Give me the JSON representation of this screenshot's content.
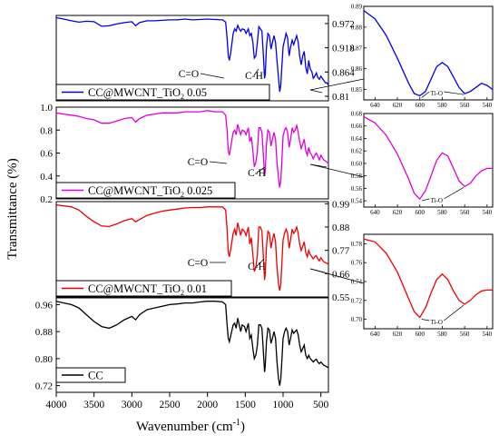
{
  "ylabel": "Transmittance (%)",
  "xlabel_main": "Wavenumber (cm",
  "xlabel_sup": "-1",
  "xlabel_close": ")",
  "chart_data": {
    "type": "line",
    "x_range": [
      4000,
      400
    ],
    "x_ticks": [
      4000,
      3500,
      3000,
      2500,
      2000,
      1500,
      1000,
      500
    ],
    "panels": [
      {
        "id": "p1",
        "legend_main": "CC@MWCNT_TiO",
        "legend_sub": "2",
        "legend_tail": " 0.05",
        "color": "#0000ee",
        "ylim": [
          0.8,
          0.99
        ],
        "right_ticks": [
          0.972,
          0.918,
          0.864,
          0.81
        ],
        "left_ticks": [],
        "annotations": [
          "C=O",
          "C-H"
        ],
        "x": [
          4000,
          3900,
          3800,
          3700,
          3600,
          3500,
          3400,
          3300,
          3200,
          3100,
          3000,
          2950,
          2900,
          2800,
          2700,
          2600,
          2500,
          2400,
          2300,
          2200,
          2100,
          2000,
          1900,
          1800,
          1760,
          1740,
          1725,
          1710,
          1690,
          1660,
          1640,
          1620,
          1600,
          1580,
          1560,
          1540,
          1510,
          1490,
          1460,
          1440,
          1420,
          1400,
          1380,
          1360,
          1340,
          1320,
          1300,
          1280,
          1260,
          1245,
          1235,
          1220,
          1200,
          1180,
          1160,
          1140,
          1120,
          1100,
          1080,
          1060,
          1045,
          1030,
          1015,
          1000,
          980,
          960,
          940,
          920,
          900,
          880,
          860,
          840,
          820,
          800,
          780,
          760,
          740,
          720,
          700,
          680,
          660,
          640,
          620,
          600,
          580,
          560,
          540,
          520,
          500,
          480,
          460,
          440,
          420,
          400
        ],
        "y": [
          0.985,
          0.982,
          0.978,
          0.975,
          0.977,
          0.976,
          0.966,
          0.967,
          0.971,
          0.974,
          0.976,
          0.967,
          0.974,
          0.978,
          0.978,
          0.979,
          0.98,
          0.98,
          0.982,
          0.98,
          0.981,
          0.982,
          0.981,
          0.98,
          0.975,
          0.94,
          0.9,
          0.89,
          0.91,
          0.95,
          0.96,
          0.955,
          0.968,
          0.96,
          0.955,
          0.96,
          0.958,
          0.95,
          0.96,
          0.945,
          0.95,
          0.93,
          0.895,
          0.9,
          0.93,
          0.965,
          0.96,
          0.955,
          0.9,
          0.85,
          0.86,
          0.92,
          0.95,
          0.945,
          0.915,
          0.93,
          0.945,
          0.93,
          0.89,
          0.85,
          0.82,
          0.835,
          0.88,
          0.92,
          0.935,
          0.95,
          0.94,
          0.9,
          0.92,
          0.935,
          0.925,
          0.935,
          0.945,
          0.93,
          0.9,
          0.88,
          0.9,
          0.91,
          0.875,
          0.86,
          0.89,
          0.87,
          0.865,
          0.85,
          0.855,
          0.862,
          0.852,
          0.848,
          0.855,
          0.85,
          0.845,
          0.84,
          0.84,
          0.835
        ],
        "inset": {
          "ylim": [
            0.845,
            0.89
          ],
          "y_ticks": [
            0.85,
            0.86,
            0.87,
            0.88,
            0.89
          ],
          "x_ticks": [
            640,
            620,
            600,
            580,
            560,
            540
          ],
          "label": "Ti-O",
          "x": [
            650,
            640,
            630,
            620,
            610,
            605,
            600,
            595,
            590,
            585,
            580,
            575,
            570,
            565,
            560,
            555,
            550,
            545,
            540,
            535
          ],
          "y": [
            0.888,
            0.884,
            0.876,
            0.865,
            0.853,
            0.848,
            0.847,
            0.849,
            0.855,
            0.861,
            0.863,
            0.861,
            0.856,
            0.851,
            0.848,
            0.849,
            0.851,
            0.853,
            0.852,
            0.85
          ]
        }
      },
      {
        "id": "p2",
        "legend_main": "CC@MWCNT_TiO",
        "legend_sub": "2",
        "legend_tail": " 0.025",
        "color": "#dd00dd",
        "ylim": [
          0.2,
          1.0
        ],
        "right_ticks": [],
        "left_ticks": [
          1.0,
          0.8,
          0.6,
          0.4,
          0.2
        ],
        "annotations": [
          "C=O",
          "C-H"
        ],
        "x": [
          4000,
          3900,
          3800,
          3700,
          3600,
          3500,
          3400,
          3300,
          3200,
          3100,
          3000,
          2950,
          2900,
          2800,
          2700,
          2600,
          2500,
          2400,
          2300,
          2200,
          2100,
          2000,
          1900,
          1800,
          1760,
          1740,
          1725,
          1710,
          1690,
          1660,
          1640,
          1620,
          1600,
          1580,
          1560,
          1540,
          1510,
          1490,
          1460,
          1440,
          1420,
          1400,
          1380,
          1360,
          1340,
          1320,
          1300,
          1280,
          1260,
          1245,
          1235,
          1220,
          1200,
          1180,
          1160,
          1140,
          1120,
          1100,
          1080,
          1060,
          1045,
          1030,
          1015,
          1000,
          980,
          960,
          940,
          920,
          900,
          880,
          860,
          840,
          820,
          800,
          780,
          760,
          740,
          720,
          700,
          680,
          660,
          640,
          620,
          600,
          580,
          560,
          540,
          520,
          500,
          480,
          460,
          440,
          420,
          400
        ],
        "y": [
          0.95,
          0.94,
          0.93,
          0.92,
          0.9,
          0.89,
          0.86,
          0.86,
          0.88,
          0.9,
          0.91,
          0.87,
          0.9,
          0.93,
          0.94,
          0.95,
          0.95,
          0.95,
          0.96,
          0.96,
          0.96,
          0.97,
          0.96,
          0.96,
          0.93,
          0.8,
          0.62,
          0.58,
          0.66,
          0.78,
          0.8,
          0.76,
          0.85,
          0.8,
          0.76,
          0.8,
          0.79,
          0.76,
          0.82,
          0.7,
          0.74,
          0.62,
          0.48,
          0.52,
          0.62,
          0.82,
          0.82,
          0.78,
          0.58,
          0.4,
          0.45,
          0.68,
          0.8,
          0.78,
          0.66,
          0.72,
          0.78,
          0.72,
          0.52,
          0.38,
          0.3,
          0.36,
          0.55,
          0.75,
          0.8,
          0.82,
          0.78,
          0.65,
          0.72,
          0.82,
          0.78,
          0.8,
          0.84,
          0.78,
          0.7,
          0.64,
          0.68,
          0.72,
          0.62,
          0.58,
          0.65,
          0.6,
          0.58,
          0.55,
          0.58,
          0.6,
          0.57,
          0.54,
          0.58,
          0.56,
          0.54,
          0.53,
          0.52,
          0.51
        ],
        "inset": {
          "ylim": [
            0.53,
            0.68
          ],
          "y_ticks": [
            0.54,
            0.56,
            0.58,
            0.6,
            0.62,
            0.64,
            0.66,
            0.68
          ],
          "x_ticks": [
            640,
            620,
            600,
            580,
            560,
            540
          ],
          "label": "Ti-O",
          "x": [
            650,
            640,
            630,
            620,
            610,
            605,
            600,
            595,
            590,
            585,
            580,
            575,
            570,
            565,
            560,
            555,
            550,
            545,
            540,
            535
          ],
          "y": [
            0.675,
            0.665,
            0.645,
            0.615,
            0.575,
            0.552,
            0.543,
            0.556,
            0.58,
            0.605,
            0.617,
            0.612,
            0.592,
            0.572,
            0.563,
            0.568,
            0.58,
            0.588,
            0.592,
            0.592
          ]
        }
      },
      {
        "id": "p3",
        "legend_main": "CC@MWCNT_TiO",
        "legend_sub": "2",
        "legend_tail": " 0.01",
        "color": "#ee0000",
        "ylim": [
          0.55,
          1.0
        ],
        "right_ticks": [
          0.99,
          0.88,
          0.77,
          0.66,
          0.55
        ],
        "left_ticks": [],
        "annotations": [
          "C=O",
          "C-H"
        ],
        "x": [
          4000,
          3900,
          3800,
          3700,
          3600,
          3500,
          3400,
          3300,
          3200,
          3100,
          3000,
          2950,
          2900,
          2800,
          2700,
          2600,
          2500,
          2400,
          2300,
          2200,
          2100,
          2000,
          1900,
          1800,
          1760,
          1740,
          1725,
          1710,
          1690,
          1660,
          1640,
          1620,
          1600,
          1580,
          1560,
          1540,
          1510,
          1490,
          1460,
          1440,
          1420,
          1400,
          1380,
          1360,
          1340,
          1320,
          1300,
          1280,
          1260,
          1245,
          1235,
          1220,
          1200,
          1180,
          1160,
          1140,
          1120,
          1100,
          1080,
          1060,
          1045,
          1030,
          1015,
          1000,
          980,
          960,
          940,
          920,
          900,
          880,
          860,
          840,
          820,
          800,
          780,
          760,
          740,
          720,
          700,
          680,
          660,
          640,
          620,
          600,
          580,
          560,
          540,
          520,
          500,
          480,
          460,
          440,
          420,
          400
        ],
        "y": [
          0.985,
          0.98,
          0.975,
          0.96,
          0.93,
          0.905,
          0.885,
          0.882,
          0.895,
          0.91,
          0.92,
          0.905,
          0.915,
          0.935,
          0.945,
          0.955,
          0.96,
          0.965,
          0.97,
          0.972,
          0.972,
          0.975,
          0.975,
          0.975,
          0.96,
          0.87,
          0.76,
          0.74,
          0.78,
          0.85,
          0.87,
          0.84,
          0.9,
          0.87,
          0.84,
          0.87,
          0.86,
          0.84,
          0.88,
          0.8,
          0.83,
          0.75,
          0.67,
          0.69,
          0.75,
          0.88,
          0.88,
          0.86,
          0.74,
          0.63,
          0.66,
          0.79,
          0.86,
          0.85,
          0.78,
          0.82,
          0.85,
          0.81,
          0.69,
          0.61,
          0.58,
          0.61,
          0.72,
          0.82,
          0.85,
          0.87,
          0.85,
          0.78,
          0.82,
          0.87,
          0.85,
          0.86,
          0.88,
          0.85,
          0.8,
          0.77,
          0.79,
          0.81,
          0.76,
          0.74,
          0.77,
          0.75,
          0.74,
          0.73,
          0.74,
          0.745,
          0.73,
          0.72,
          0.735,
          0.725,
          0.715,
          0.712,
          0.708,
          0.705
        ],
        "inset": {
          "ylim": [
            0.69,
            0.79
          ],
          "y_ticks": [
            0.7,
            0.72,
            0.74,
            0.76,
            0.78
          ],
          "x_ticks": [
            640,
            620,
            600,
            580,
            560,
            540
          ],
          "label": "Ti-O",
          "x": [
            650,
            640,
            630,
            620,
            610,
            605,
            600,
            595,
            590,
            585,
            580,
            575,
            570,
            565,
            560,
            555,
            550,
            545,
            540,
            535
          ],
          "y": [
            0.785,
            0.782,
            0.77,
            0.75,
            0.722,
            0.708,
            0.702,
            0.712,
            0.728,
            0.742,
            0.748,
            0.742,
            0.73,
            0.72,
            0.716,
            0.72,
            0.726,
            0.73,
            0.731,
            0.731
          ]
        }
      },
      {
        "id": "p4",
        "legend_main": "CC",
        "legend_sub": "",
        "legend_tail": "",
        "color": "#000000",
        "ylim": [
          0.7,
          0.98
        ],
        "right_ticks": [],
        "left_ticks": [
          0.96,
          0.88,
          0.8,
          0.72
        ],
        "annotations": [],
        "x": [
          4000,
          3900,
          3800,
          3700,
          3600,
          3500,
          3400,
          3300,
          3200,
          3100,
          3000,
          2950,
          2900,
          2800,
          2700,
          2600,
          2500,
          2400,
          2300,
          2200,
          2100,
          2000,
          1900,
          1800,
          1760,
          1740,
          1725,
          1710,
          1690,
          1660,
          1640,
          1620,
          1600,
          1580,
          1560,
          1540,
          1510,
          1490,
          1460,
          1440,
          1420,
          1400,
          1380,
          1360,
          1340,
          1320,
          1300,
          1280,
          1260,
          1245,
          1235,
          1220,
          1200,
          1180,
          1160,
          1140,
          1120,
          1100,
          1080,
          1060,
          1045,
          1030,
          1015,
          1000,
          980,
          960,
          940,
          920,
          900,
          880,
          860,
          840,
          820,
          800,
          780,
          760,
          740,
          720,
          700,
          680,
          660,
          640,
          620,
          600,
          580,
          560,
          540,
          520,
          500,
          480,
          460,
          440,
          420,
          400
        ],
        "y": [
          0.97,
          0.965,
          0.96,
          0.95,
          0.93,
          0.91,
          0.895,
          0.89,
          0.9,
          0.915,
          0.925,
          0.915,
          0.93,
          0.945,
          0.95,
          0.955,
          0.96,
          0.962,
          0.965,
          0.965,
          0.968,
          0.97,
          0.97,
          0.968,
          0.96,
          0.9,
          0.86,
          0.85,
          0.87,
          0.9,
          0.905,
          0.89,
          0.92,
          0.9,
          0.88,
          0.9,
          0.895,
          0.88,
          0.905,
          0.86,
          0.87,
          0.83,
          0.8,
          0.81,
          0.84,
          0.9,
          0.9,
          0.89,
          0.82,
          0.76,
          0.78,
          0.85,
          0.89,
          0.885,
          0.845,
          0.86,
          0.88,
          0.86,
          0.79,
          0.74,
          0.72,
          0.74,
          0.8,
          0.86,
          0.88,
          0.89,
          0.88,
          0.84,
          0.86,
          0.885,
          0.875,
          0.88,
          0.885,
          0.87,
          0.84,
          0.82,
          0.83,
          0.84,
          0.81,
          0.8,
          0.81,
          0.8,
          0.795,
          0.79,
          0.795,
          0.798,
          0.79,
          0.785,
          0.79,
          0.785,
          0.78,
          0.778,
          0.775,
          0.773
        ],
        "inset": null
      }
    ]
  }
}
